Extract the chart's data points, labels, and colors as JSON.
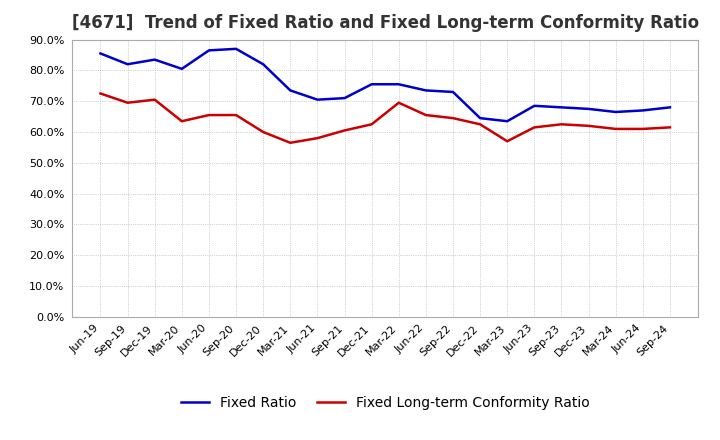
{
  "title": "[4671]  Trend of Fixed Ratio and Fixed Long-term Conformity Ratio",
  "x_labels": [
    "Jun-19",
    "Sep-19",
    "Dec-19",
    "Mar-20",
    "Jun-20",
    "Sep-20",
    "Dec-20",
    "Mar-21",
    "Jun-21",
    "Sep-21",
    "Dec-21",
    "Mar-22",
    "Jun-22",
    "Sep-22",
    "Dec-22",
    "Mar-23",
    "Jun-23",
    "Sep-23",
    "Dec-23",
    "Mar-24",
    "Jun-24",
    "Sep-24"
  ],
  "fixed_ratio": [
    85.5,
    82.0,
    83.5,
    80.5,
    86.5,
    87.0,
    82.0,
    73.5,
    70.5,
    71.0,
    75.5,
    75.5,
    73.5,
    73.0,
    64.5,
    63.5,
    68.5,
    68.0,
    67.5,
    66.5,
    67.0,
    68.0
  ],
  "fixed_lt_ratio": [
    72.5,
    69.5,
    70.5,
    63.5,
    65.5,
    65.5,
    60.0,
    56.5,
    58.0,
    60.5,
    62.5,
    69.5,
    65.5,
    64.5,
    62.5,
    57.0,
    61.5,
    62.5,
    62.0,
    61.0,
    61.0,
    61.5
  ],
  "fixed_ratio_color": "#0000cc",
  "fixed_lt_ratio_color": "#cc0000",
  "ylim_min": 0.0,
  "ylim_max": 90.0,
  "ytick_step": 10.0,
  "background_color": "#ffffff",
  "plot_bg_color": "#ffffff",
  "grid_color": "#aaaaaa",
  "title_fontsize": 12,
  "legend_fontsize": 10,
  "tick_fontsize": 8
}
